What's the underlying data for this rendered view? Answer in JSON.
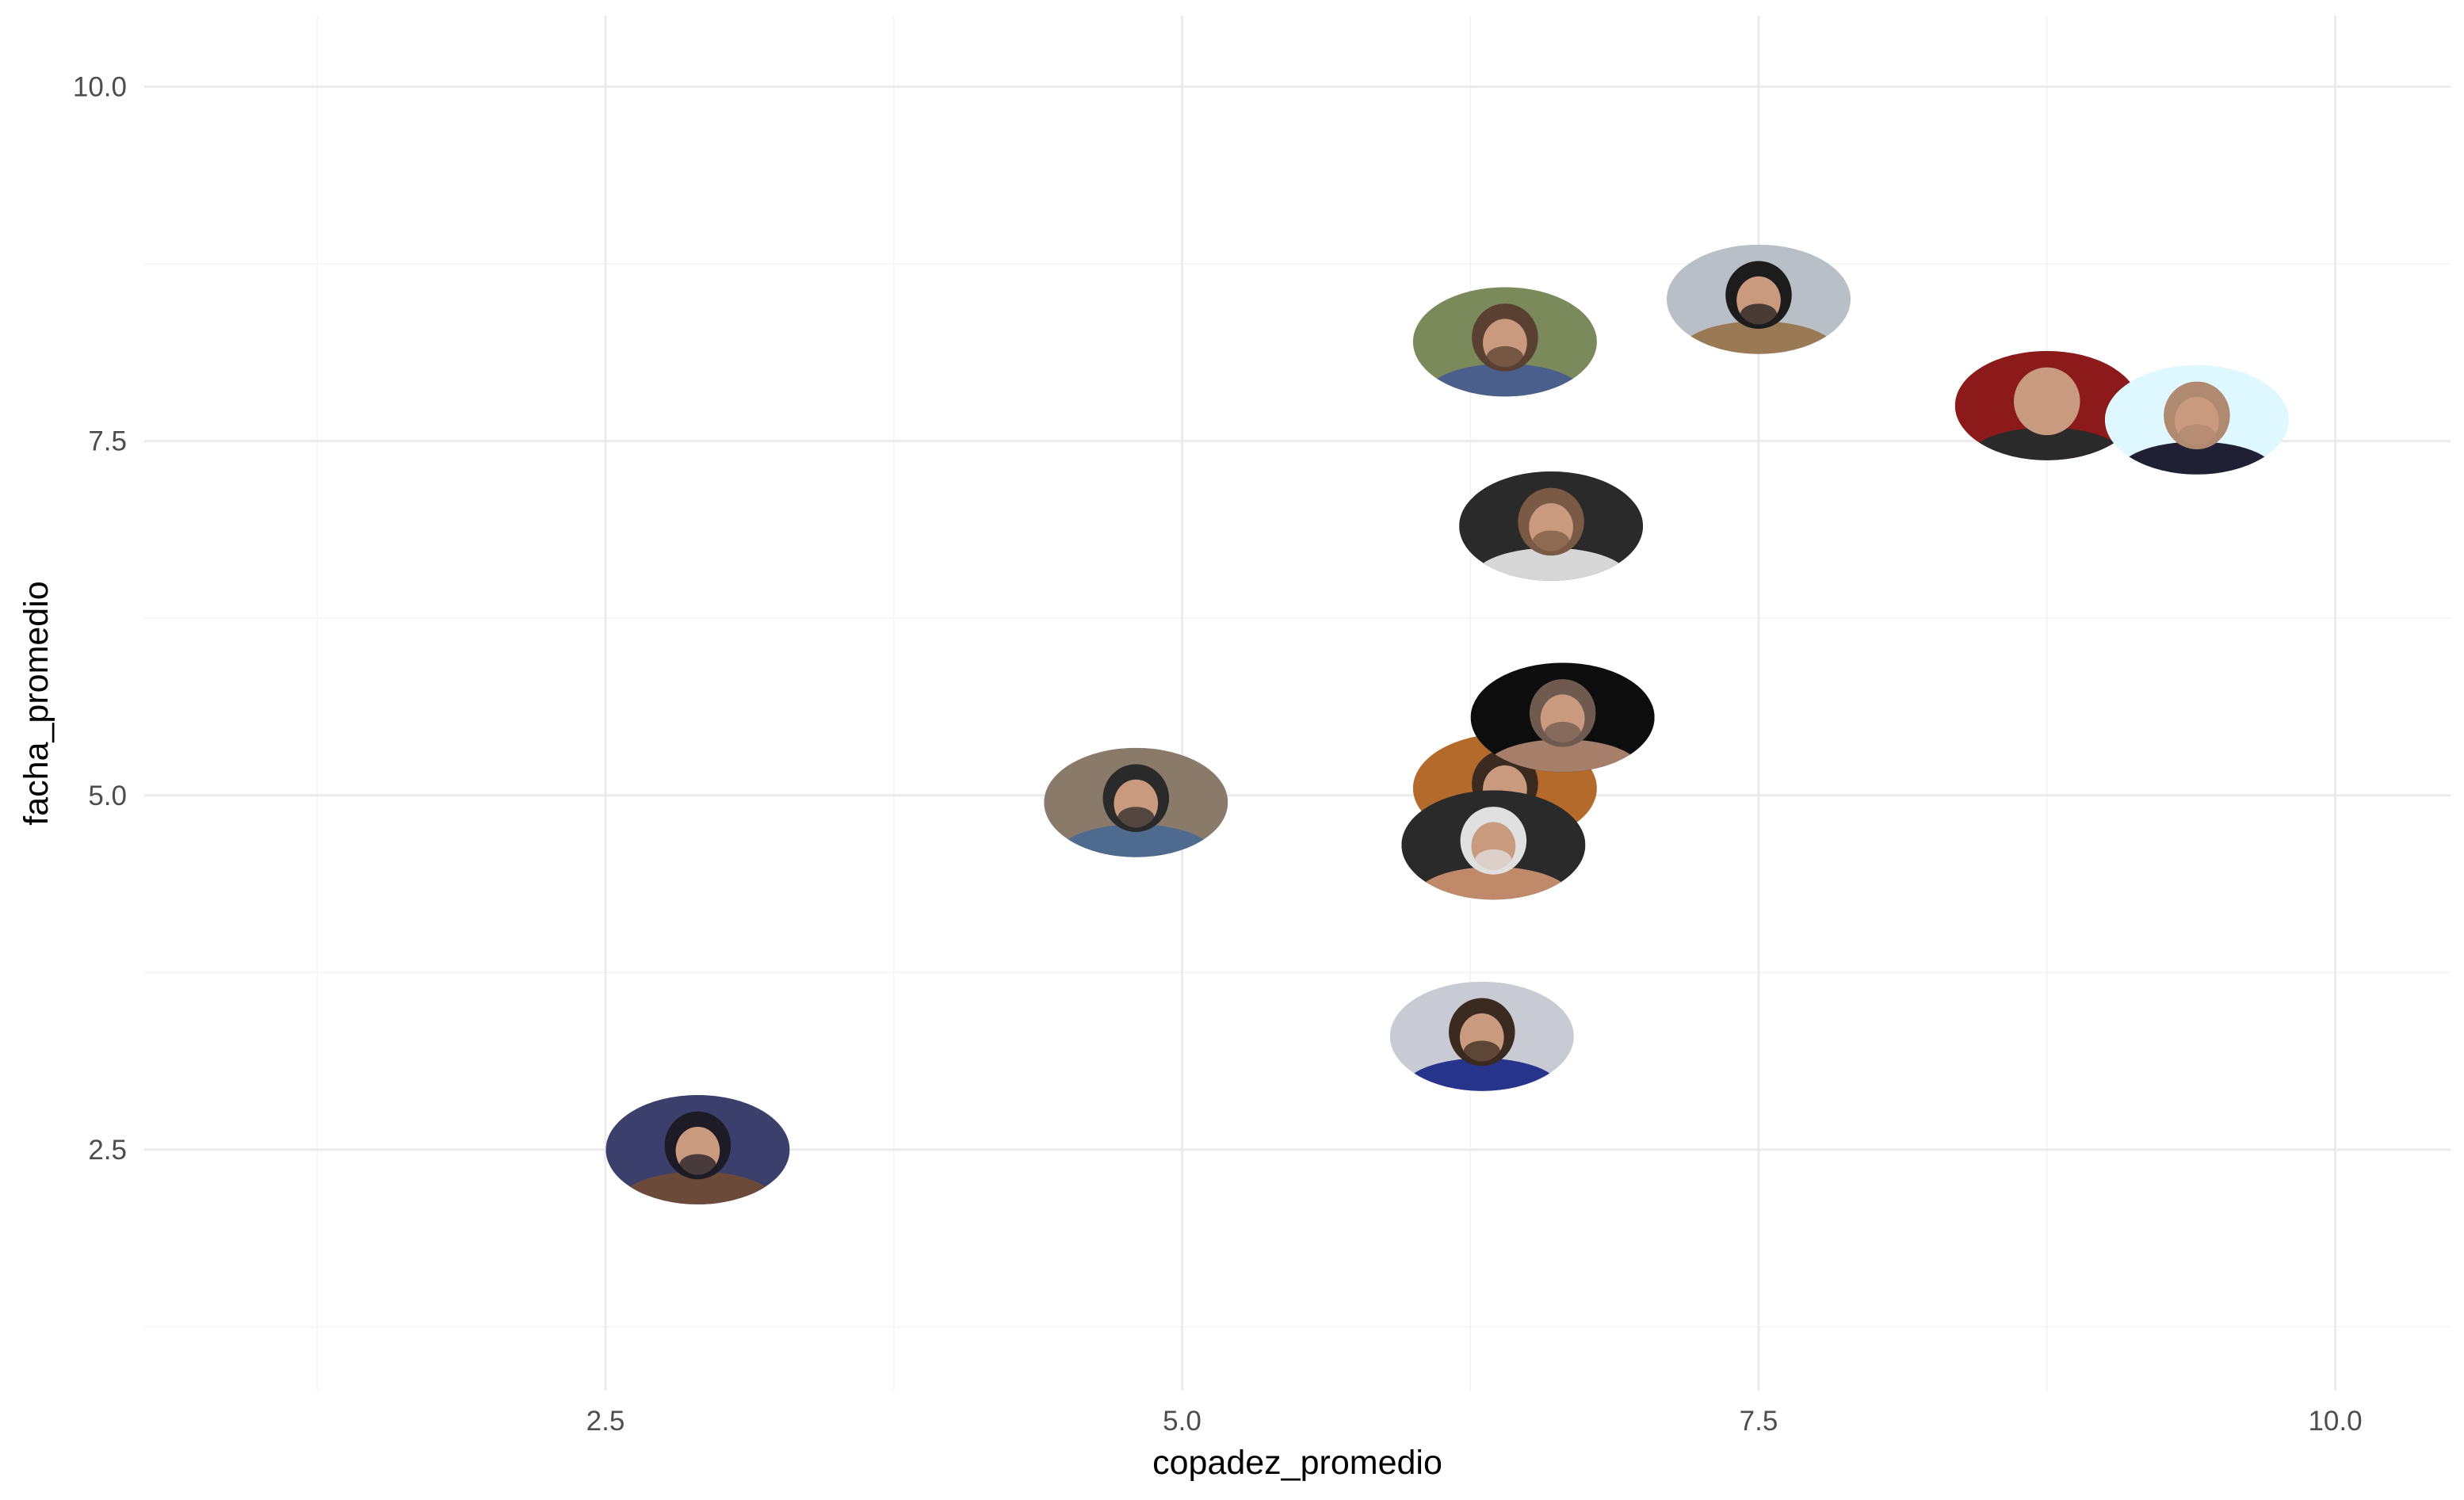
{
  "chart_data": {
    "type": "scatter",
    "title": "",
    "xlabel": "copadez_promedio",
    "ylabel": "facha_promedio",
    "xlim": [
      0.5,
      10.5
    ],
    "ylim": [
      0.8,
      10.5
    ],
    "x_ticks": [
      2.5,
      5.0,
      7.5,
      10.0
    ],
    "x_tick_labels": [
      "2.5",
      "5.0",
      "7.5",
      "10.0"
    ],
    "y_ticks": [
      2.5,
      5.0,
      7.5,
      10.0
    ],
    "y_tick_labels": [
      "2.5",
      "5.0",
      "7.5",
      "10.0"
    ],
    "grid": true,
    "legend": "none",
    "marker": "circular-photo",
    "points": [
      {
        "x": 2.9,
        "y": 2.5,
        "palette": [
          "#3a3f6b",
          "#6b4a3a",
          "#1d1b25"
        ]
      },
      {
        "x": 4.8,
        "y": 4.95,
        "palette": [
          "#8a7a6a",
          "#4f6a8f",
          "#2a2a2a"
        ]
      },
      {
        "x": 6.3,
        "y": 3.3,
        "palette": [
          "#c9cbd4",
          "#27348b",
          "#3a2a20"
        ]
      },
      {
        "x": 6.4,
        "y": 8.2,
        "palette": [
          "#7a8a5a",
          "#4b5f8c",
          "#5a4030"
        ]
      },
      {
        "x": 6.6,
        "y": 6.9,
        "palette": [
          "#2a2a2a",
          "#d7d7d7",
          "#7a5a45"
        ]
      },
      {
        "x": 6.4,
        "y": 5.05,
        "palette": [
          "#b46a2a",
          "#d9c3a5",
          "#3a2a20"
        ]
      },
      {
        "x": 6.65,
        "y": 5.55,
        "palette": [
          "#0d0d0d",
          "#a67f6a",
          "#6f5a50"
        ]
      },
      {
        "x": 6.35,
        "y": 4.65,
        "palette": [
          "#2a2a2a",
          "#c08a6a",
          "#e0e0e0"
        ]
      },
      {
        "x": 7.5,
        "y": 8.5,
        "palette": [
          "#b8bfc6",
          "#9a7a55",
          "#1c1c1c"
        ]
      },
      {
        "x": 8.75,
        "y": 7.75,
        "palette": [
          "#8c1a1a",
          "#2a2a2a",
          "#c89a80"
        ]
      },
      {
        "x": 9.4,
        "y": 7.65,
        "palette": [
          "#dff7ff",
          "#1f2033",
          "#b08a70"
        ]
      }
    ]
  }
}
